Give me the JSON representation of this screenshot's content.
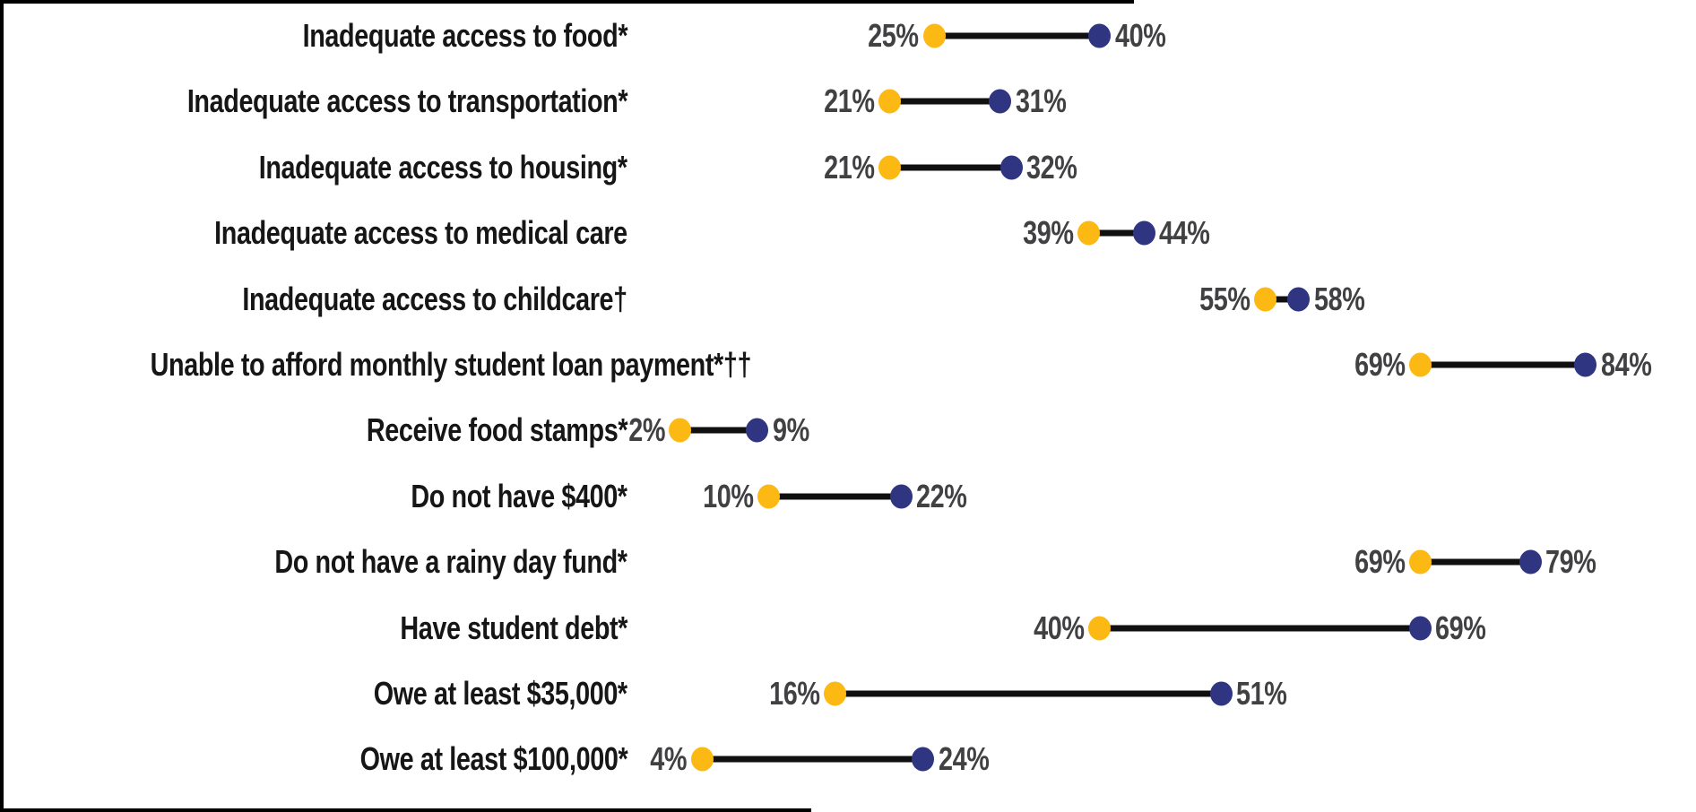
{
  "chart_data": {
    "type": "dumbbell",
    "orientation": "horizontal",
    "title": "",
    "xlabel": "",
    "ylabel": "",
    "value_format": "percent",
    "xlim": [
      0,
      94
    ],
    "grid": false,
    "legend": "none",
    "categories": [
      "Inadequate access to food*",
      "Inadequate access to transportation*",
      "Inadequate access to housing*",
      "Inadequate access to medical care",
      "Inadequate access to childcare†",
      "Unable to afford monthly student loan payment*††",
      "Receive food stamps*",
      "Do not have $400*",
      "Do not have a rainy day fund*",
      "Have student debt*",
      "Owe at least $35,000*",
      "Owe at least $100,000*"
    ],
    "series": [
      {
        "name": "low",
        "marker": "circle",
        "color": "#FDB913",
        "values": [
          25,
          21,
          21,
          39,
          55,
          69,
          2,
          10,
          69,
          40,
          16,
          4
        ]
      },
      {
        "name": "high",
        "marker": "circle",
        "color": "#2F3580",
        "values": [
          40,
          31,
          32,
          44,
          58,
          84,
          9,
          22,
          79,
          69,
          51,
          24
        ]
      }
    ],
    "data_labels": {
      "low": [
        "25%",
        "21%",
        "21%",
        "39%",
        "55%",
        "69%",
        "2%",
        "10%",
        "69%",
        "40%",
        "16%",
        "4%"
      ],
      "high": [
        "40%",
        "31%",
        "32%",
        "44%",
        "58%",
        "84%",
        "9%",
        "22%",
        "79%",
        "69%",
        "51%",
        "24%"
      ]
    }
  },
  "colors": {
    "low_dot": "#FDB913",
    "high_dot": "#2F3580",
    "connector": "#101010",
    "category_text": "#161616",
    "value_text": "#414042",
    "background": "#FFFFFF",
    "frame": "#000000"
  }
}
